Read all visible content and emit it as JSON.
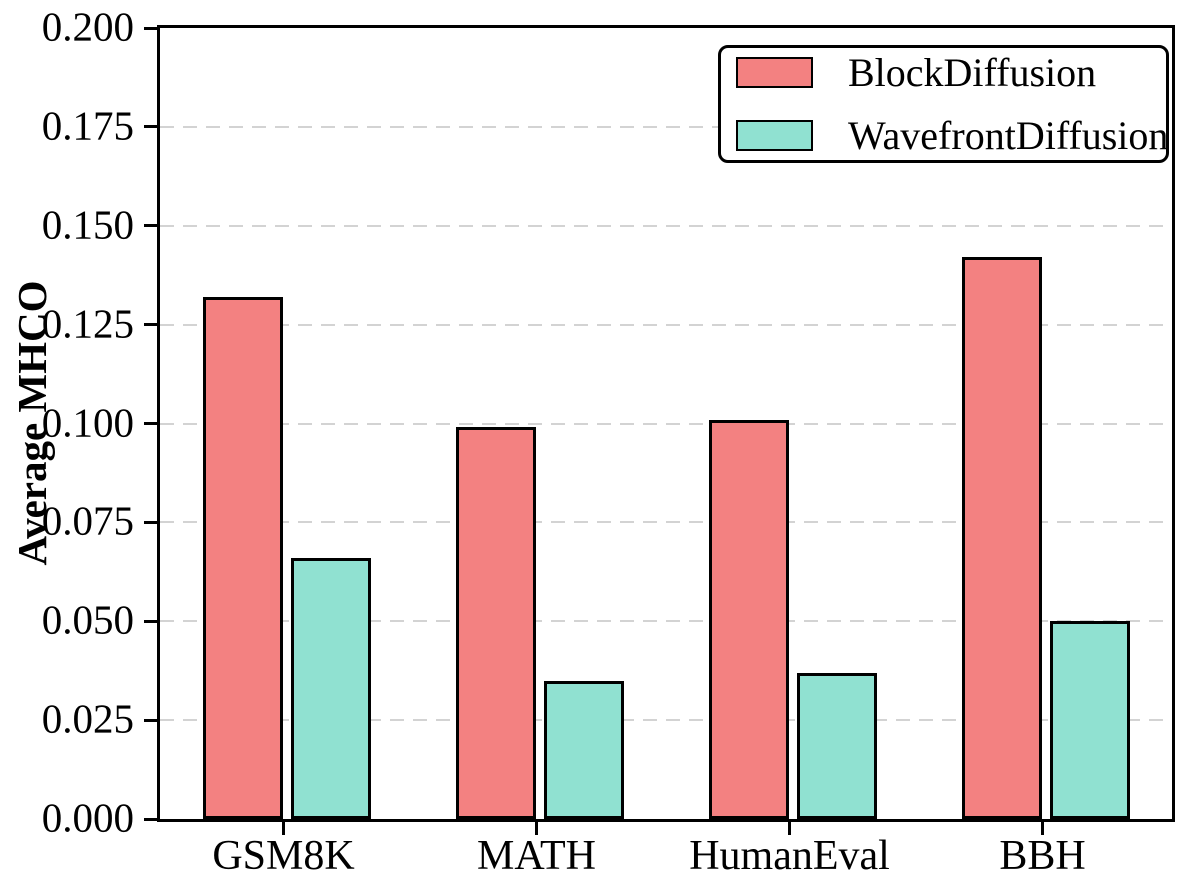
{
  "chart_data": {
    "type": "bar",
    "categories": [
      "GSM8K",
      "MATH",
      "HumanEval",
      "BBH"
    ],
    "series": [
      {
        "name": "BlockDiffusion",
        "color": "#F38181",
        "edge_color": "#000000",
        "values": [
          0.132,
          0.099,
          0.101,
          0.142
        ]
      },
      {
        "name": "WavefrontDiffusion",
        "color": "#90E1D1",
        "edge_color": "#000000",
        "values": [
          0.066,
          0.035,
          0.037,
          0.05
        ]
      }
    ],
    "ylabel": "Average MHCO",
    "ylim": [
      0,
      0.2
    ],
    "ytick_step": 0.025,
    "ytick_format_decimals": 3,
    "ytick_labels": [
      "0.000",
      "0.025",
      "0.050",
      "0.075",
      "0.100",
      "0.125",
      "0.150",
      "0.175",
      "0.200"
    ],
    "grid": {
      "axis": "y",
      "style": "dashed",
      "color": "#D3D3D3"
    },
    "legend_position": "upper right",
    "background_color": "#FFFFFF"
  }
}
